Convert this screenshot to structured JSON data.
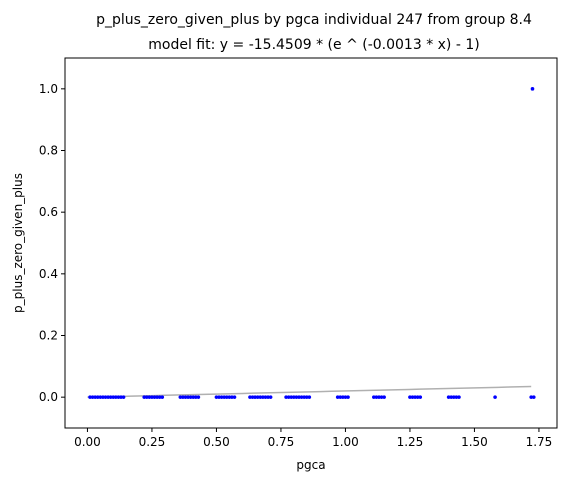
{
  "chart_data": {
    "type": "scatter",
    "title": "p_plus_zero_given_plus by pgca individual 247 from group 8.4",
    "subtitle": "model fit: y = -15.4509 * (e ^ (-0.0013 * x) - 1)",
    "xlabel": "pgca",
    "ylabel": "p_plus_zero_given_plus",
    "xlim": [
      -0.087,
      1.82
    ],
    "ylim": [
      -0.1,
      1.1
    ],
    "x_ticks": [
      "0.00",
      "0.25",
      "0.50",
      "0.75",
      "1.00",
      "1.25",
      "1.50",
      "1.75"
    ],
    "y_ticks": [
      "0.0",
      "0.2",
      "0.4",
      "0.6",
      "0.8",
      "1.0"
    ],
    "grid": false,
    "colors": {
      "points": "#0000ff",
      "fit": "#b0b0b0"
    },
    "series": [
      {
        "values_x": [
          0.01,
          0.02,
          0.03,
          0.04,
          0.05,
          0.06,
          0.07,
          0.08,
          0.09,
          0.1,
          0.11,
          0.12,
          0.13,
          0.14,
          0.22,
          0.23,
          0.24,
          0.25,
          0.26,
          0.27,
          0.28,
          0.29,
          0.36,
          0.37,
          0.38,
          0.39,
          0.4,
          0.41,
          0.42,
          0.43,
          0.5,
          0.51,
          0.52,
          0.53,
          0.54,
          0.55,
          0.56,
          0.57,
          0.63,
          0.64,
          0.65,
          0.66,
          0.67,
          0.68,
          0.69,
          0.7,
          0.71,
          0.77,
          0.78,
          0.79,
          0.8,
          0.81,
          0.82,
          0.83,
          0.84,
          0.85,
          0.86,
          0.97,
          0.98,
          0.99,
          1.0,
          1.01,
          1.11,
          1.12,
          1.13,
          1.14,
          1.15,
          1.25,
          1.26,
          1.27,
          1.28,
          1.29,
          1.4,
          1.41,
          1.42,
          1.43,
          1.44,
          1.58,
          1.72,
          1.73,
          1.725
        ],
        "values_y": [
          0,
          0,
          0,
          0,
          0,
          0,
          0,
          0,
          0,
          0,
          0,
          0,
          0,
          0,
          0,
          0,
          0,
          0,
          0,
          0,
          0,
          0,
          0,
          0,
          0,
          0,
          0,
          0,
          0,
          0,
          0,
          0,
          0,
          0,
          0,
          0,
          0,
          0,
          0,
          0,
          0,
          0,
          0,
          0,
          0,
          0,
          0,
          0,
          0,
          0,
          0,
          0,
          0,
          0,
          0,
          0,
          0,
          0,
          0,
          0,
          0,
          0,
          0,
          0,
          0,
          0,
          0,
          0,
          0,
          0,
          0,
          0,
          0,
          0,
          0,
          0,
          0,
          0,
          0,
          0,
          1.0
        ]
      }
    ],
    "fit": {
      "a": -15.4509,
      "b": -0.0013,
      "x_range": [
        0.0,
        1.72
      ]
    }
  }
}
